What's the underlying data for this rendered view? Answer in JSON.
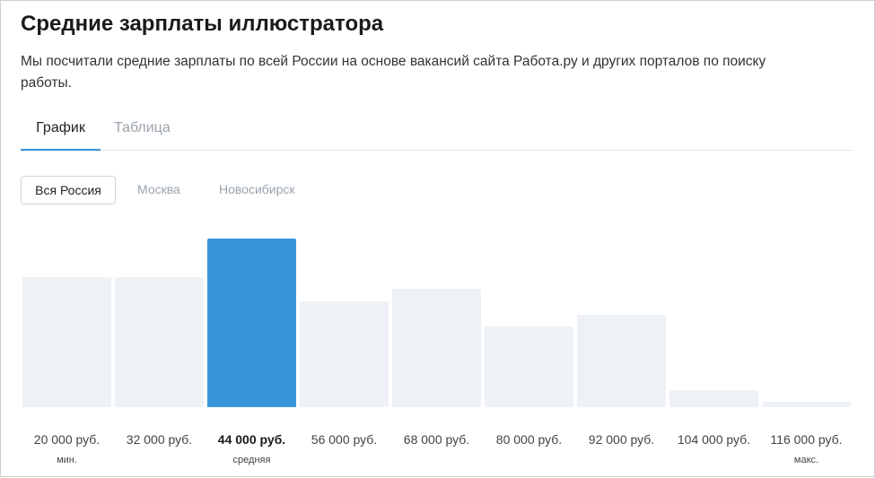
{
  "page": {
    "title": "Средние зарплаты иллюстратора",
    "description": "Мы посчитали средние зарплаты по всей России на основе вакансий сайта Работа.ру и других порталов по поиску работы."
  },
  "tabs": [
    {
      "label": "График",
      "active": true
    },
    {
      "label": "Таблица",
      "active": false
    }
  ],
  "regions": [
    {
      "label": "Вся Россия",
      "active": true
    },
    {
      "label": "Москва",
      "active": false
    },
    {
      "label": "Новосибирск",
      "active": false
    }
  ],
  "colors": {
    "accent": "#3995d9",
    "bar": "#eef2f7",
    "tab_underline": "#3a8fd5"
  },
  "chart_data": {
    "type": "bar",
    "categories": [
      "20 000 руб.",
      "32 000 руб.",
      "44 000 руб.",
      "56 000 руб.",
      "68 000 руб.",
      "80 000 руб.",
      "92 000 руб.",
      "104 000 руб.",
      "116 000 руб."
    ],
    "values": [
      0.77,
      0.77,
      1.0,
      0.63,
      0.7,
      0.48,
      0.55,
      0.1,
      0.03
    ],
    "highlight_index": 2,
    "sublabels": [
      "мин.",
      "",
      "средняя",
      "",
      "",
      "",
      "",
      "",
      "макс."
    ],
    "ylim": [
      0,
      1
    ],
    "grid": false,
    "legend": "none"
  }
}
